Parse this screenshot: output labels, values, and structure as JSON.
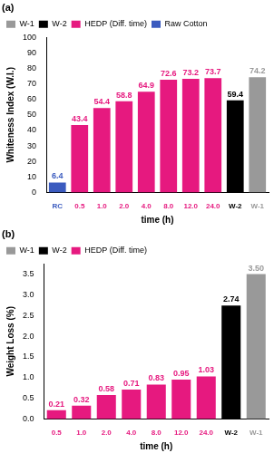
{
  "chart_data": [
    {
      "type": "bar",
      "title": "(a)",
      "x_label": "time (h)",
      "y_label": "Whiteness Index (W.I.)",
      "categories": [
        "RC",
        "0.5",
        "1.0",
        "2.0",
        "4.0",
        "8.0",
        "12.0",
        "24.0",
        "W-2",
        "W-1"
      ],
      "series": [
        {
          "name": "W-1",
          "color": "#999999",
          "values": [
            null,
            null,
            null,
            null,
            null,
            null,
            null,
            null,
            null,
            74.2
          ]
        },
        {
          "name": "W-2",
          "color": "#000000",
          "values": [
            null,
            null,
            null,
            null,
            null,
            null,
            null,
            null,
            59.4,
            null
          ]
        },
        {
          "name": "HEDP (Diff. time)",
          "color": "#e6197f",
          "values": [
            null,
            43.4,
            54.4,
            58.8,
            64.9,
            72.6,
            73.2,
            73.7,
            null,
            null
          ]
        },
        {
          "name": "Raw Cotton",
          "color": "#3b5bbf",
          "values": [
            6.4,
            null,
            null,
            null,
            null,
            null,
            null,
            null,
            null,
            null
          ]
        }
      ],
      "ylim": [
        0,
        100
      ],
      "yticks": [
        0,
        10,
        20,
        30,
        40,
        50,
        60,
        70,
        80,
        90,
        100
      ],
      "grid": false,
      "legend": "upper left",
      "data_labels": true
    },
    {
      "type": "bar",
      "title": "(b)",
      "x_label": "time (h)",
      "y_label": "Weight Loss (%)",
      "categories": [
        "0.5",
        "1.0",
        "2.0",
        "4.0",
        "8.0",
        "12.0",
        "24.0",
        "W-2",
        "W-1"
      ],
      "series": [
        {
          "name": "W-1",
          "color": "#999999",
          "values": [
            null,
            null,
            null,
            null,
            null,
            null,
            null,
            null,
            3.5
          ],
          "value_labels": [
            null,
            null,
            null,
            null,
            null,
            null,
            null,
            null,
            "3.50"
          ]
        },
        {
          "name": "W-2",
          "color": "#000000",
          "values": [
            null,
            null,
            null,
            null,
            null,
            null,
            null,
            2.74,
            null
          ],
          "value_labels": [
            null,
            null,
            null,
            null,
            null,
            null,
            null,
            "2.74",
            null
          ]
        },
        {
          "name": "HEDP (Diff. time)",
          "color": "#e6197f",
          "values": [
            0.21,
            0.32,
            0.58,
            0.71,
            0.83,
            0.95,
            1.03,
            null,
            null
          ],
          "value_labels": [
            "0.21",
            "0.32",
            "0.58",
            "0.71",
            "0.83",
            "0.95",
            "1.03",
            null,
            null
          ]
        }
      ],
      "ylim": [
        0,
        3.75
      ],
      "yticks": [
        {
          "value": 0,
          "label": "0.0"
        },
        0.5,
        {
          "value": 1,
          "label": "1.0"
        },
        1.5,
        {
          "value": 2,
          "label": "2.0"
        },
        2.5,
        {
          "value": 3,
          "label": "3.0"
        },
        3.5
      ],
      "grid": false,
      "legend": "upper left",
      "data_labels": true
    }
  ]
}
